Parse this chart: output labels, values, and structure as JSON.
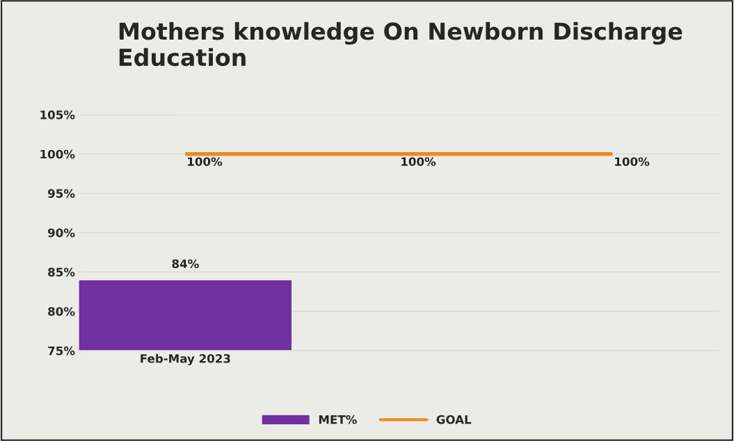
{
  "chart_data": {
    "type": "bar",
    "title": "Mothers knowledge On Newborn Discharge Education",
    "categories": [
      "Feb-May 2023",
      null,
      null
    ],
    "series": [
      {
        "name": "MET%",
        "color": "#7030a0",
        "values": [
          84,
          null,
          null
        ],
        "value_labels": [
          "84%",
          null,
          null
        ]
      },
      {
        "name": "GOAL",
        "type": "line",
        "color": "#ed8b1e",
        "values": [
          100,
          100,
          100
        ],
        "value_labels": [
          "100%",
          "100%",
          "100%"
        ]
      }
    ],
    "ylim": [
      75,
      105
    ],
    "yticks": [
      {
        "value": 75,
        "label": "75%"
      },
      {
        "value": 80,
        "label": "80%"
      },
      {
        "value": 85,
        "label": "85%"
      },
      {
        "value": 90,
        "label": "90%"
      },
      {
        "value": 95,
        "label": "95%"
      },
      {
        "value": 100,
        "label": "100%"
      },
      {
        "value": 105,
        "label": "105%"
      }
    ],
    "grid": "y",
    "legend": "bottom",
    "marker": "none"
  }
}
